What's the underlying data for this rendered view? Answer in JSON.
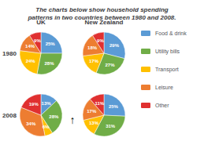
{
  "chart_data": {
    "type": "pie",
    "title": "The charts below show household spending\npatterns in two countries between 1980 and 2008.",
    "columns": [
      "UK",
      "New Zealand"
    ],
    "rows": [
      "1980",
      "2008"
    ],
    "categories": [
      "Food & drink",
      "Utility bills",
      "Transport",
      "Leisure",
      "Other"
    ],
    "colors": [
      "#5b9bd5",
      "#70ad47",
      "#ffc000",
      "#ed7d31",
      "#e03030"
    ],
    "series": [
      {
        "values": [
          25,
          28,
          24,
          14,
          9
        ],
        "value_labels": [
          "25%",
          "28%",
          "24%",
          "14%",
          "9%"
        ]
      },
      {
        "values": [
          29,
          27,
          17,
          18,
          9
        ],
        "value_labels": [
          "29%",
          "27%",
          "17%",
          "18%",
          "9%"
        ]
      },
      {
        "values": [
          13,
          28,
          6,
          34,
          19
        ],
        "value_labels": [
          "13%",
          "28%",
          "6%",
          "34%",
          "19%"
        ]
      },
      {
        "values": [
          25,
          31,
          13,
          17,
          11
        ],
        "value_labels": [
          "25%",
          "31%",
          "13%",
          "17%",
          "11%"
        ]
      }
    ],
    "data_labels": true,
    "legend": "right",
    "annotations": [
      "↑"
    ]
  }
}
